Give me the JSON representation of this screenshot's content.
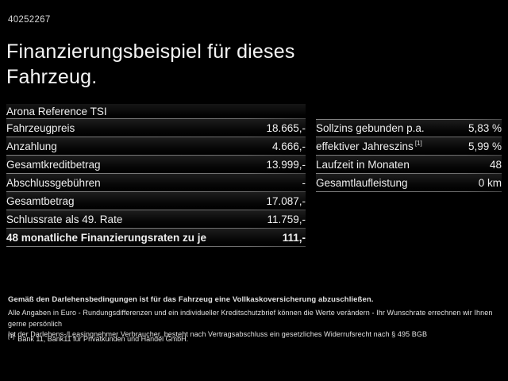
{
  "page": {
    "vehicle_id": "40252267",
    "title_line1": "Finanzierungsbeispiel für dieses",
    "title_line2": "Fahrzeug."
  },
  "finance_table": {
    "model": "Arona Reference TSI",
    "rows": [
      {
        "label": "Fahrzeugpreis",
        "value": "18.665,-"
      },
      {
        "label": "Anzahlung",
        "value": "4.666,-"
      },
      {
        "label": "Gesamtkreditbetrag",
        "value": "13.999,-"
      },
      {
        "label": "Abschlussgebühren",
        "value": "-"
      },
      {
        "label": "Gesamtbetrag",
        "value": "17.087,-"
      },
      {
        "label": "Schlussrate als 49. Rate",
        "value": "11.759,-"
      }
    ],
    "highlight_row": {
      "label": "48 monatliche Finanzierungsraten zu je",
      "value": "111,-"
    }
  },
  "conditions_table": {
    "rows": [
      {
        "label": "Sollzins gebunden p.a.",
        "sup": "",
        "value": "5,83 %"
      },
      {
        "label": "effektiver Jahreszins",
        "sup": "[1]",
        "value": "5,99 %"
      },
      {
        "label": "Laufzeit in Monaten",
        "sup": "",
        "value": "48"
      },
      {
        "label": "Gesamtlaufleistung",
        "sup": "",
        "value": "0 km"
      }
    ]
  },
  "disclaimer": {
    "line1": "Gemäß den Darlehensbedingungen ist für das Fahrzeug eine Vollkaskoversicherung abzuschließen.",
    "line2": "Alle Angaben in Euro - Rundungsdifferenzen und ein individueller Kreditschutzbrief können die Werte verändern - Ihr Wunschrate errechnen wir Ihnen gerne persönlich",
    "line3": "Ist der Darlehens-/Leasingnehmer Verbraucher, besteht nach Vertragsabschluss ein gesetzliches Widerrufsrecht nach § 495 BGB",
    "footnote_marker": "[1]",
    "footnote_text": "Bank 11, Bank11 für Privatkunden und Handel GmbH."
  },
  "colors": {
    "background": "#000000",
    "text": "#ededed",
    "separator": "#6e6e6e"
  }
}
